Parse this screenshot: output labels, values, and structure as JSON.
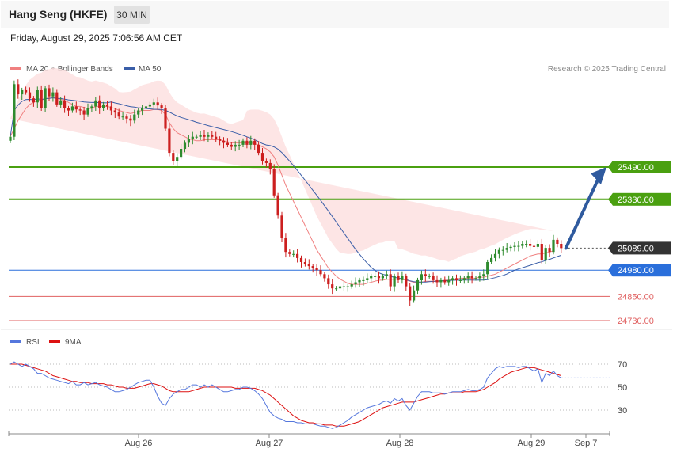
{
  "header": {
    "title": "Hang Seng (HKFE)",
    "timeframe": "30 MIN",
    "datetime": "Friday, August 29, 2025 7:06:56 AM CET",
    "credit": "Research © 2025 Trading Central"
  },
  "colors": {
    "up": "#2e8b2e",
    "down": "#cc1f1f",
    "ma20": "#f08080",
    "band": "#fde0e0",
    "ma50": "#3a5ea8",
    "resistance": "#4aa010",
    "pivot": "#2a6fdb",
    "support": "#e06060",
    "arrow": "#2f5a9e",
    "rsi": "#5577dd",
    "rsi_ma": "#dd1111"
  },
  "chart_data": [
    {
      "type": "candlestick",
      "legend": [
        {
          "name": "MA 20 + Bollinger Bands",
          "color": "#f08080"
        },
        {
          "name": "MA 50",
          "color": "#3a5ea8"
        }
      ],
      "x_ticks": [
        "Aug 26",
        "Aug 27",
        "Aug 28",
        "Aug 29",
        "Sep 7"
      ],
      "ylim": [
        24700,
        26000
      ],
      "levels": [
        {
          "label": "25490.00",
          "value": 25490,
          "role": "resistance"
        },
        {
          "label": "25330.00",
          "value": 25330,
          "role": "resistance"
        },
        {
          "label": "25089.00",
          "value": 25089,
          "role": "last"
        },
        {
          "label": "24980.00",
          "value": 24980,
          "role": "pivot"
        },
        {
          "label": "24850.00",
          "value": 24850,
          "role": "support"
        },
        {
          "label": "24730.00",
          "value": 24730,
          "role": "support"
        }
      ],
      "target": 25490,
      "closes": [
        25640,
        25900,
        25850,
        25870,
        25860,
        25830,
        25810,
        25870,
        25780,
        25880,
        25840,
        25860,
        25800,
        25820,
        25780,
        25770,
        25790,
        25775,
        25770,
        25750,
        25780,
        25790,
        25820,
        25780,
        25800,
        25790,
        25770,
        25760,
        25740,
        25740,
        25730,
        25720,
        25750,
        25770,
        25780,
        25790,
        25800,
        25810,
        25795,
        25780,
        25680,
        25560,
        25520,
        25540,
        25580,
        25610,
        25630,
        25640,
        25640,
        25650,
        25640,
        25650,
        25640,
        25630,
        25620,
        25610,
        25600,
        25590,
        25600,
        25600,
        25620,
        25600,
        25620,
        25600,
        25560,
        25520,
        25510,
        25480,
        25350,
        25250,
        25140,
        25070,
        25060,
        25060,
        25040,
        25020,
        25010,
        25000,
        24990,
        24980,
        24960,
        24940,
        24910,
        24890,
        24890,
        24900,
        24900,
        24900,
        24910,
        24920,
        24930,
        24930,
        24940,
        24950,
        24950,
        24940,
        24950,
        24960,
        24900,
        24950,
        24930,
        24950,
        24900,
        24830,
        24880,
        24930,
        24960,
        24950,
        24950,
        24930,
        24920,
        24930,
        24920,
        24930,
        24940,
        24930,
        24930,
        24940,
        24950,
        24940,
        24940,
        24950,
        24960,
        25020,
        25040,
        25060,
        25080,
        25080,
        25090,
        25095,
        25100,
        25100,
        25110,
        25110,
        25100,
        25095,
        25110,
        25030,
        25090,
        25070,
        25130,
        25110,
        25089
      ],
      "ma20": [
        25640,
        25680,
        25720,
        25750,
        25780,
        25800,
        25810,
        25820,
        25820,
        25830,
        25830,
        25835,
        25830,
        25825,
        25820,
        25810,
        25800,
        25790,
        25790,
        25785,
        25780,
        25780,
        25790,
        25790,
        25790,
        25790,
        25785,
        25780,
        25770,
        25765,
        25760,
        25755,
        25760,
        25765,
        25770,
        25770,
        25770,
        25775,
        25775,
        25770,
        25750,
        25710,
        25680,
        25660,
        25650,
        25640,
        25630,
        25625,
        25620,
        25620,
        25625,
        25625,
        25625,
        25625,
        25625,
        25620,
        25615,
        25610,
        25610,
        25610,
        25610,
        25610,
        25610,
        25605,
        25600,
        25590,
        25580,
        25565,
        25540,
        25500,
        25450,
        25400,
        25360,
        25320,
        25280,
        25240,
        25200,
        25160,
        25120,
        25080,
        25050,
        25020,
        24990,
        24970,
        24950,
        24935,
        24925,
        24915,
        24910,
        24910,
        24910,
        24910,
        24915,
        24920,
        24925,
        24930,
        24930,
        24935,
        24935,
        24935,
        24935,
        24935,
        24930,
        24925,
        24920,
        24920,
        24920,
        24925,
        24925,
        24925,
        24925,
        24925,
        24930,
        24930,
        24935,
        24935,
        24940,
        24940,
        24940,
        24940,
        24940,
        24945,
        24945,
        24950,
        24955,
        24960,
        24970,
        24980,
        24990,
        25000,
        25010,
        25020,
        25030,
        25040,
        25050,
        25055,
        25060,
        25060,
        25065,
        25070,
        25075
      ]
    },
    {
      "type": "line",
      "legend": [
        {
          "name": "RSI",
          "color": "#5577dd"
        },
        {
          "name": "9MA",
          "color": "#dd1111"
        }
      ],
      "y_ticks": [
        70,
        50,
        30
      ],
      "ylim": [
        10,
        80
      ],
      "rsi": [
        70,
        72,
        70,
        68,
        70,
        68,
        66,
        62,
        62,
        60,
        58,
        57,
        56,
        55,
        54,
        53,
        55,
        52,
        52,
        54,
        52,
        53,
        54,
        52,
        51,
        50,
        48,
        46,
        46,
        47,
        48,
        50,
        52,
        54,
        55,
        56,
        56,
        50,
        42,
        36,
        34,
        40,
        44,
        46,
        48,
        48,
        50,
        52,
        52,
        50,
        52,
        50,
        52,
        50,
        48,
        46,
        46,
        47,
        48,
        48,
        50,
        50,
        49,
        47,
        44,
        40,
        34,
        28,
        25,
        23,
        22,
        20,
        20,
        20,
        19,
        19,
        18,
        18,
        18,
        17,
        16,
        16,
        15,
        14,
        15,
        17,
        19,
        21,
        24,
        26,
        28,
        30,
        32,
        33,
        34,
        35,
        37,
        38,
        36,
        40,
        38,
        40,
        34,
        30,
        36,
        42,
        46,
        46,
        46,
        45,
        45,
        45,
        44,
        45,
        46,
        46,
        46,
        47,
        48,
        47,
        47,
        48,
        50,
        58,
        62,
        66,
        68,
        67,
        68,
        68,
        68,
        67,
        68,
        68,
        66,
        64,
        66,
        54,
        62,
        60,
        64,
        60,
        58
      ],
      "ma": [
        70,
        70,
        70,
        70,
        69,
        68,
        67,
        66,
        65,
        64,
        62,
        60,
        59,
        58,
        57,
        56,
        55,
        55,
        54,
        54,
        54,
        53,
        53,
        53,
        53,
        52,
        52,
        51,
        50,
        50,
        49,
        49,
        49,
        50,
        51,
        52,
        53,
        53,
        52,
        51,
        49,
        47,
        46,
        46,
        46,
        46,
        46,
        47,
        48,
        49,
        50,
        50,
        50,
        50,
        50,
        50,
        50,
        50,
        49,
        49,
        49,
        49,
        49,
        49,
        48,
        47,
        45,
        43,
        40,
        37,
        34,
        31,
        28,
        25,
        23,
        21,
        20,
        19,
        19,
        18,
        18,
        17,
        17,
        17,
        16,
        16,
        16,
        17,
        18,
        19,
        20,
        22,
        24,
        26,
        28,
        30,
        32,
        33,
        34,
        35,
        36,
        37,
        37,
        37,
        37,
        38,
        39,
        40,
        41,
        42,
        43,
        44,
        44,
        45,
        45,
        45,
        45,
        46,
        46,
        46,
        46,
        47,
        48,
        50,
        52,
        54,
        57,
        59,
        61,
        63,
        64,
        65,
        66,
        67,
        67,
        67,
        66,
        65,
        64,
        63,
        62,
        61,
        60
      ]
    }
  ]
}
